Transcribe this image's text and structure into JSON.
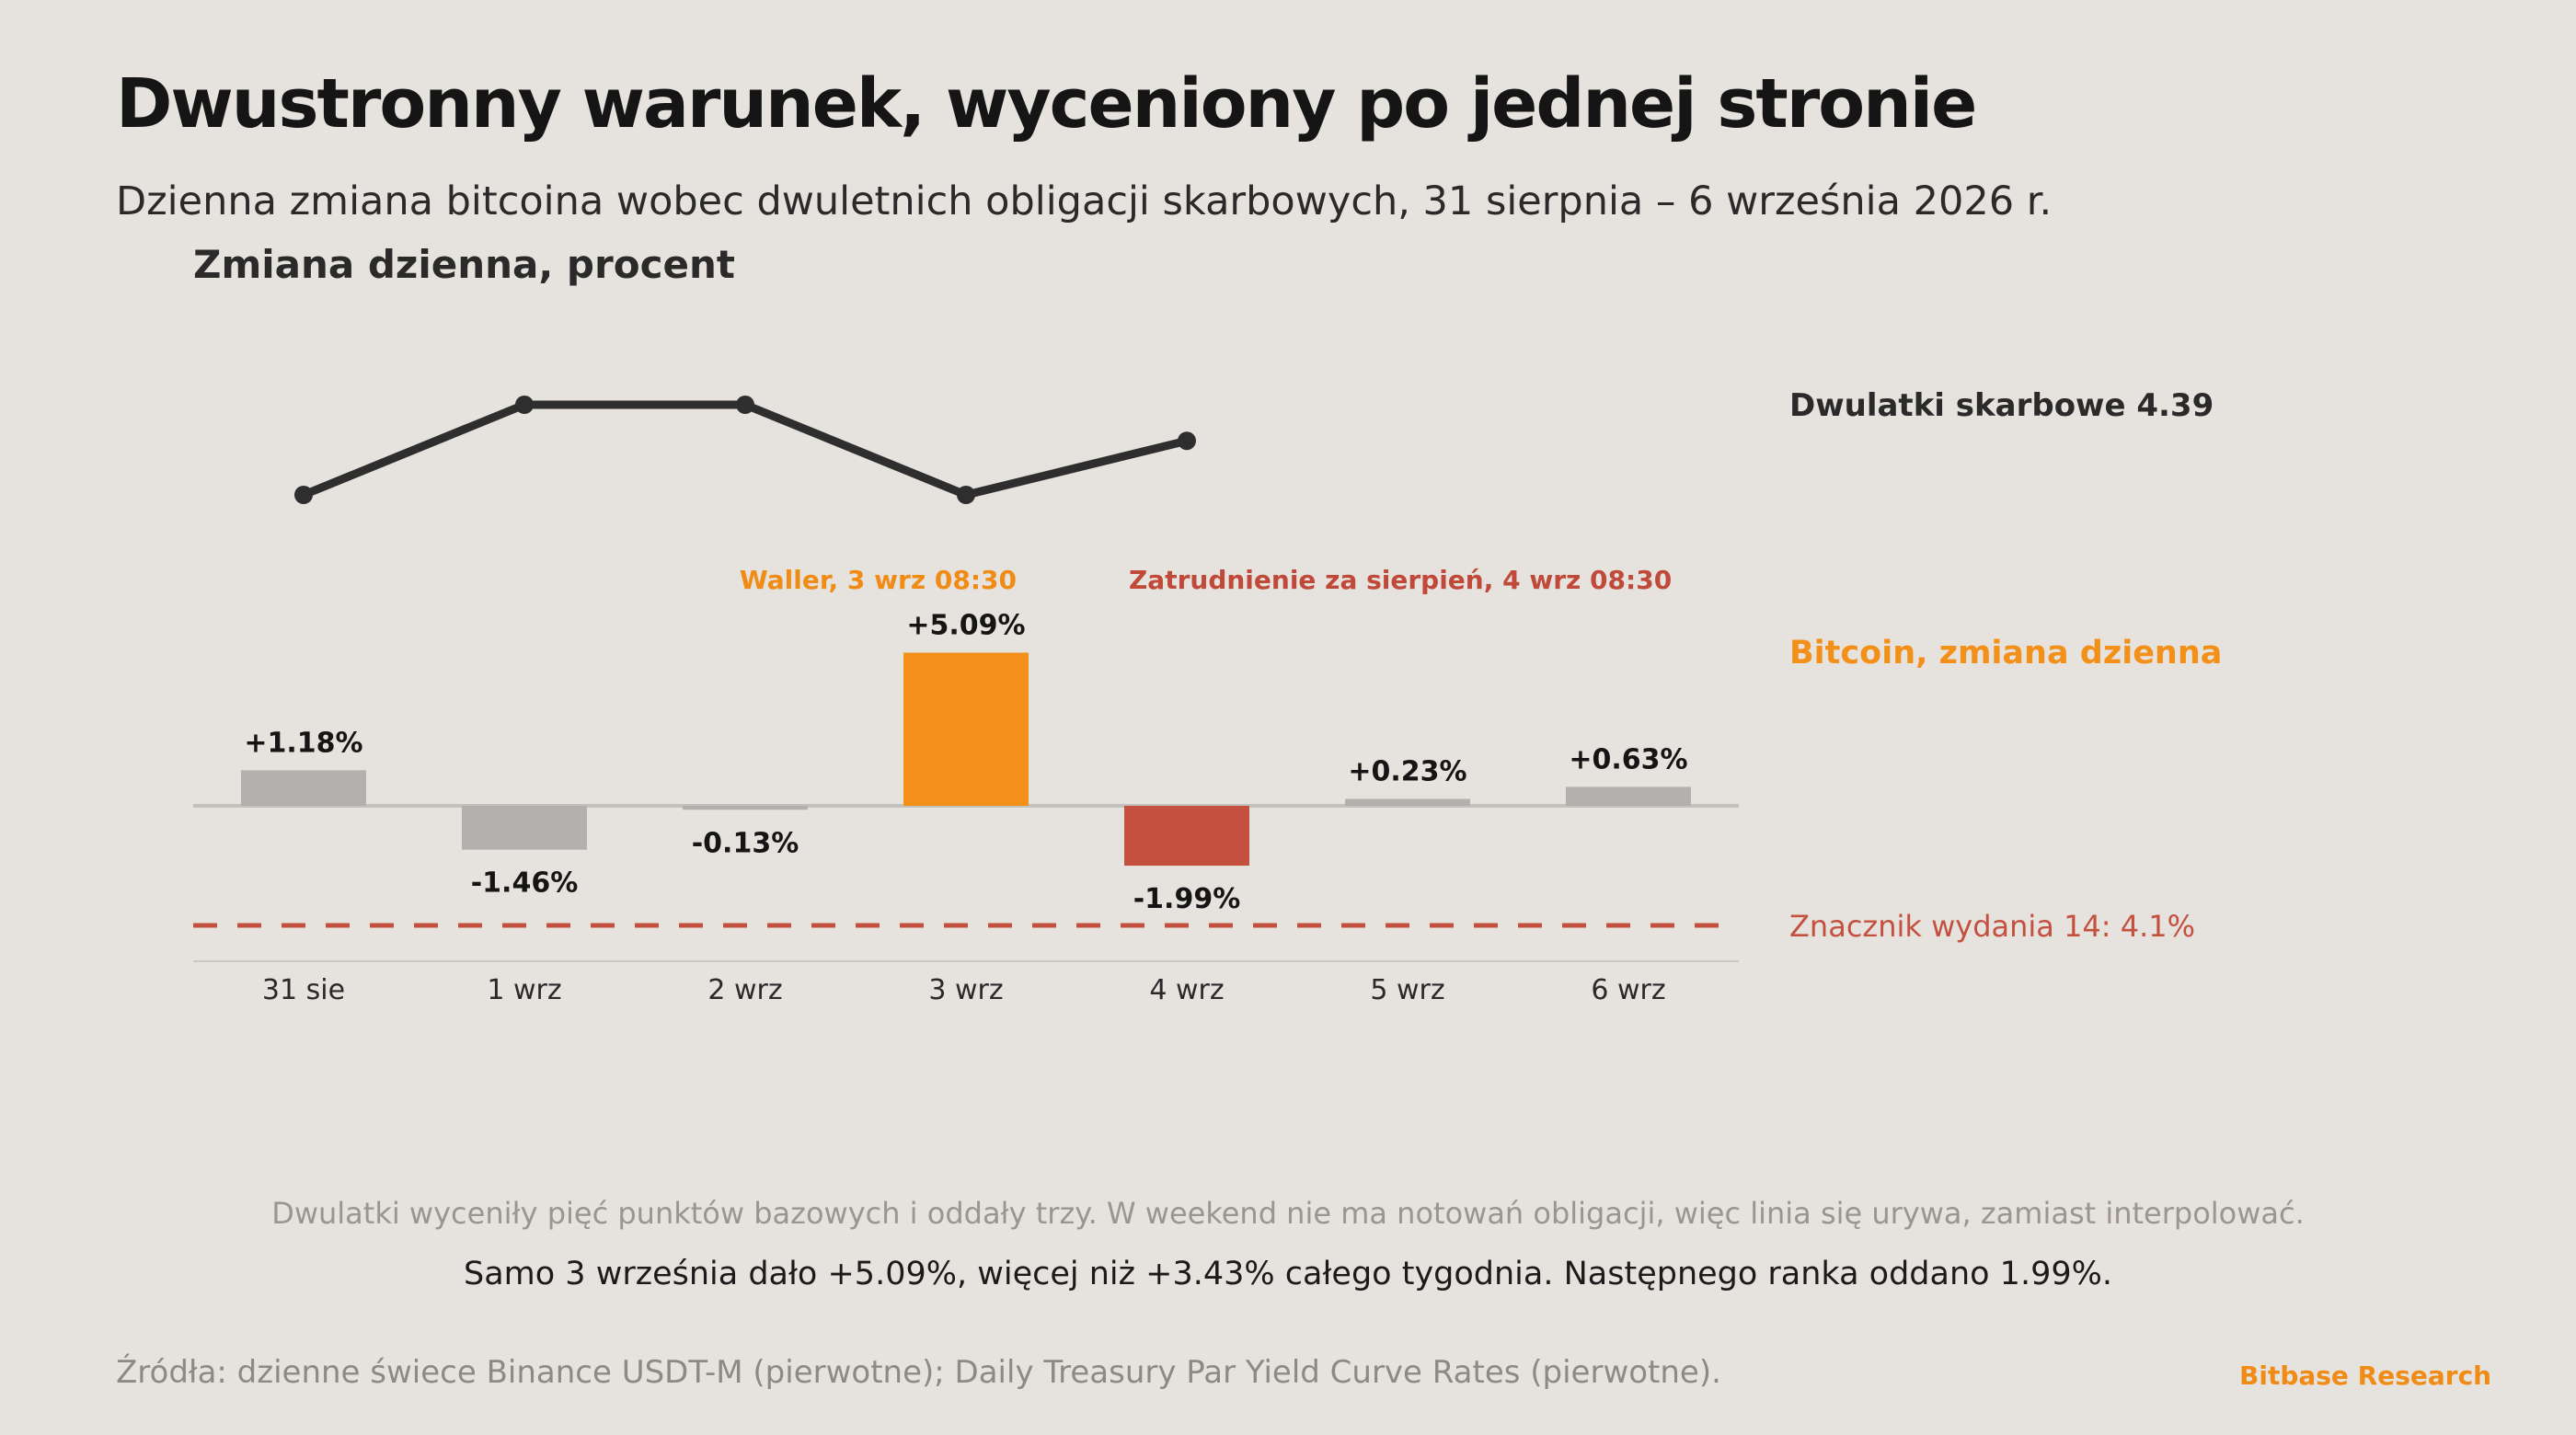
{
  "header": {
    "title": "Dwustronny warunek, wyceniony po jednej stronie",
    "subtitle": "Dzienna zmiana bitcoina wobec dwuletnich obligacji skarbowych, 31 sierpnia – 6 września 2026 r."
  },
  "chart_data": {
    "type": "bar",
    "ylabel": "Zmiana dzienna, procent",
    "categories": [
      "31 sie",
      "1 wrz",
      "2 wrz",
      "3 wrz",
      "4 wrz",
      "5 wrz",
      "6 wrz"
    ],
    "series": [
      {
        "name": "Bitcoin, zmiana dzienna",
        "values": [
          1.18,
          -1.46,
          -0.13,
          5.09,
          -1.99,
          0.23,
          0.63
        ],
        "labels": [
          "+1.18%",
          "-1.46%",
          "-0.13%",
          "+5.09%",
          "-1.99%",
          "+0.23%",
          "+0.63%"
        ],
        "colors": [
          "#b3b1ae",
          "#b3b1ae",
          "#b3b1ae",
          "#f39019",
          "#c45140",
          "#b3b1ae",
          "#b3b1ae"
        ]
      },
      {
        "name": "Dwulatki skarbowe 4.39",
        "type": "line",
        "values": [
          4.36,
          4.41,
          4.41,
          4.36,
          4.39,
          null,
          null
        ]
      }
    ],
    "reference_line": {
      "label": "Znacznik wydania 14: 4.1%",
      "value": 4.1,
      "color": "#c45140"
    },
    "annotations": [
      {
        "text": "Waller, 3 wrz 08:30",
        "category": "3 wrz",
        "color": "#f08c15"
      },
      {
        "text": "Zatrudnienie za sierpień, 4 wrz 08:30",
        "category": "4 wrz",
        "color": "#c0493a"
      }
    ],
    "colors": {
      "neutral": "#b3b1ae",
      "accent": "#f39019",
      "negative": "#c45140",
      "line": "#2e2e2e"
    },
    "grid": false,
    "legend": "right"
  },
  "notes": {
    "line1": "Dwulatki wyceniły pięć punktów bazowych i oddały trzy. W weekend nie ma notowań obligacji, więc linia się urywa, zamiast interpolować.",
    "line2": "Samo 3 września dało +5.09%, więcej niż +3.43% całego tygodnia. Następnego ranka oddano 1.99%."
  },
  "footer": {
    "source": "Źródła: dzienne świece Binance USDT-M (pierwotne); Daily Treasury Par Yield Curve Rates (pierwotne).",
    "brand": "Bitbase Research"
  }
}
